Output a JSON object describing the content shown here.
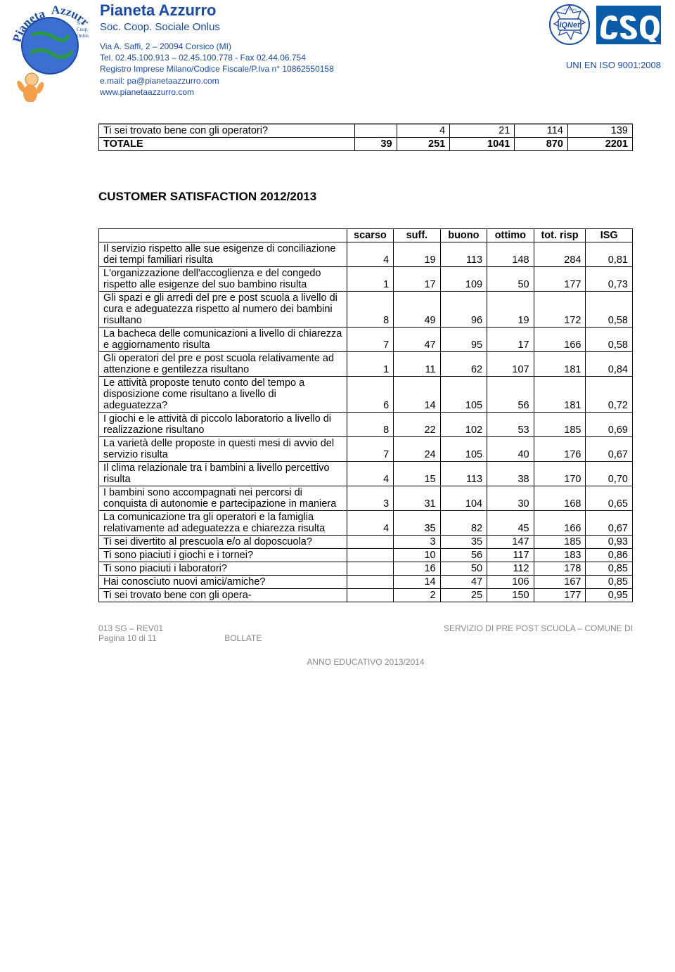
{
  "header": {
    "org_name": "Pianeta Azzurro",
    "org_type": "Soc. Coop. Sociale Onlus",
    "addr_line1": "Via A. Saffi, 2 – 20094 Corsico (MI)",
    "addr_line2": "Tel. 02.45.100.913 – 02.45.100.778  - Fax 02.44.06.754",
    "addr_line3": "Registro Imprese Milano/Codice Fiscale/P.Iva n° 10862550158",
    "addr_line4": "e.mail: pa@pianetaazzurro.com",
    "addr_line5": "www.pianetaazzurro.com",
    "iso": "UNI EN ISO 9001:2008"
  },
  "table1": {
    "row_label": "Ti sei trovato bene con gli operatori?",
    "row_vals": [
      "",
      "4",
      "21",
      "114",
      "139"
    ],
    "total_label": "TOTALE",
    "total_vals": [
      "39",
      "251",
      "1041",
      "870",
      "2201"
    ]
  },
  "section_title": "CUSTOMER SATISFACTION  2012/2013",
  "table2": {
    "headers": [
      "scarso",
      "suff.",
      "buono",
      "ottimo",
      "tot. risp",
      "ISG"
    ],
    "rows": [
      {
        "label": "Il servizio rispetto alle sue esigenze di conciliazione dei tempi familiari risulta",
        "v": [
          "4",
          "19",
          "113",
          "148",
          "284",
          "0,81"
        ]
      },
      {
        "label": "L'organizzazione dell'accoglienza e del congedo rispetto alle esigenze del suo bambino risulta",
        "v": [
          "1",
          "17",
          "109",
          "50",
          "177",
          "0,73"
        ]
      },
      {
        "label": "Gli spazi e gli arredi del pre e post scuola a livello di cura e adeguatezza rispetto al numero dei bambini risultano",
        "v": [
          "8",
          "49",
          "96",
          "19",
          "172",
          "0,58"
        ]
      },
      {
        "label": "La bacheca delle comunicazioni a livello di chiarezza e aggiornamento risulta",
        "v": [
          "7",
          "47",
          "95",
          "17",
          "166",
          "0,58"
        ]
      },
      {
        "label": "Gli operatori del pre e post scuola  relativamente ad attenzione e gentilezza risultano",
        "v": [
          "1",
          "11",
          "62",
          "107",
          "181",
          "0,84"
        ]
      },
      {
        "label": "Le attività proposte tenuto conto del tempo a disposizione come risultano a livello di adeguatezza?",
        "v": [
          "6",
          "14",
          "105",
          "56",
          "181",
          "0,72"
        ]
      },
      {
        "label": "I giochi e le attività di piccolo laboratorio a livello di realizzazione risultano",
        "v": [
          "8",
          "22",
          "102",
          "53",
          "185",
          "0,69"
        ]
      },
      {
        "label": "La varietà delle proposte in questi mesi di avvio del servizio risulta",
        "v": [
          "7",
          "24",
          "105",
          "40",
          "176",
          "0,67"
        ]
      },
      {
        "label": "Il clima relazionale tra i bambini a livello percettivo risulta",
        "v": [
          "4",
          "15",
          "113",
          "38",
          "170",
          "0,70"
        ]
      },
      {
        "label": "I bambini sono accompagnati nei percorsi di conquista di autonomie e partecipazione in maniera",
        "v": [
          "3",
          "31",
          "104",
          "30",
          "168",
          "0,65"
        ]
      },
      {
        "label": "La comunicazione tra gli operatori e la famiglia relativamente ad adeguatezza e chiarezza risulta",
        "v": [
          "4",
          "35",
          "82",
          "45",
          "166",
          "0,67"
        ]
      },
      {
        "label": "Ti sei divertito al prescuola e/o al doposcuola?",
        "v": [
          "",
          "3",
          "35",
          "147",
          "185",
          "0,93"
        ]
      },
      {
        "label": "Ti sono piaciuti i giochi e i tornei?",
        "v": [
          "",
          "10",
          "56",
          "117",
          "183",
          "0,86"
        ]
      },
      {
        "label": "Ti sono piaciuti i laboratori?",
        "v": [
          "",
          "16",
          "50",
          "112",
          "178",
          "0,85"
        ]
      },
      {
        "label": "Hai conosciuto nuovi amici/amiche?",
        "v": [
          "",
          "14",
          "47",
          "106",
          "167",
          "0,85"
        ]
      },
      {
        "label": "Ti sei trovato bene con gli opera-",
        "v": [
          "",
          "2",
          "25",
          "150",
          "177",
          "0,95"
        ]
      }
    ]
  },
  "footer": {
    "left1": "013 SG – REV01",
    "left2_a": "Pagina 10 di 11",
    "left2_b": "BOLLATE",
    "right": "SERVIZIO DI PRE POST SCUOLA – COMUNE DI",
    "year": "ANNO EDUCATIVO   2013/2014"
  },
  "colors": {
    "accent": "#1b4aa3",
    "csq_bg": "#0a5ca8"
  }
}
